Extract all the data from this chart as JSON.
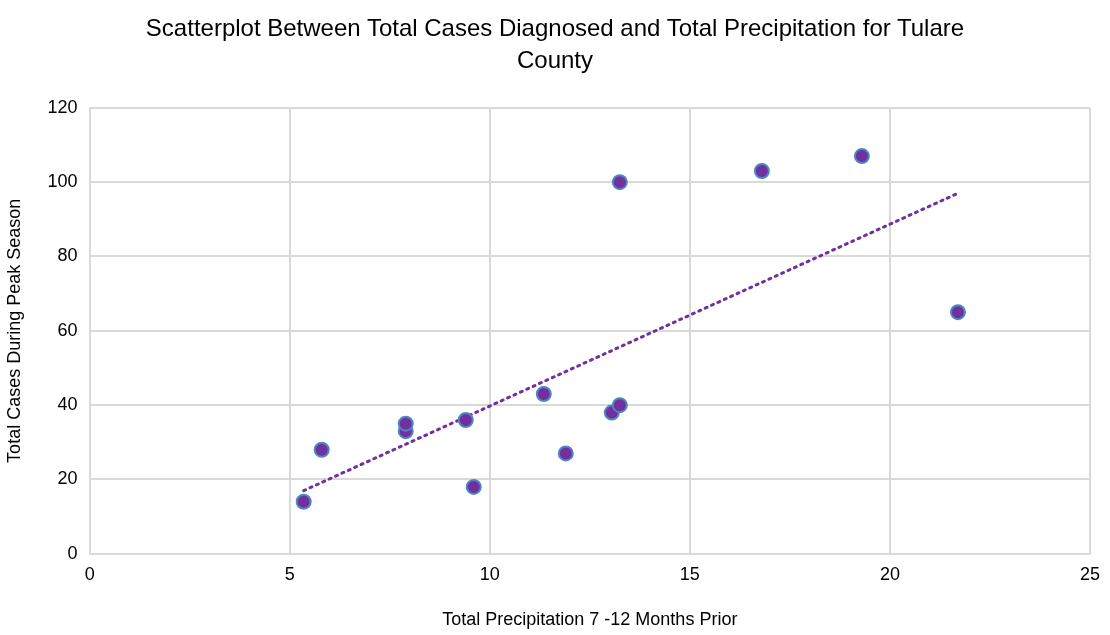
{
  "chart_data": {
    "type": "scatter",
    "title": "Scatterplot Between Total Cases Diagnosed and Total Precipitation for Tulare County",
    "xlabel": "Total Precipitation 7 -12 Months Prior",
    "ylabel": "Total Cases During Peak Season",
    "xlim": [
      0,
      25
    ],
    "xticks": [
      0,
      5,
      10,
      15,
      20,
      25
    ],
    "ylim": [
      0,
      120
    ],
    "yticks": [
      0,
      20,
      40,
      60,
      80,
      100,
      120
    ],
    "grid": true,
    "legend": false,
    "marker": "circle",
    "series": [
      {
        "type": "scatter",
        "color": "#7030a0",
        "x": [
          5.35,
          5.8,
          7.9,
          7.9,
          9.4,
          9.6,
          11.35,
          11.9,
          13.05,
          13.25,
          13.25,
          16.8,
          19.3,
          21.7
        ],
        "values": [
          14,
          28,
          33,
          35,
          36,
          18,
          43,
          27,
          38,
          40,
          100,
          103,
          107,
          65
        ]
      },
      {
        "type": "line",
        "color": "#7030a0",
        "line_style": "dotted",
        "marker": "none",
        "x": [
          5.35,
          21.7
        ],
        "values": [
          17,
          97
        ]
      }
    ]
  }
}
